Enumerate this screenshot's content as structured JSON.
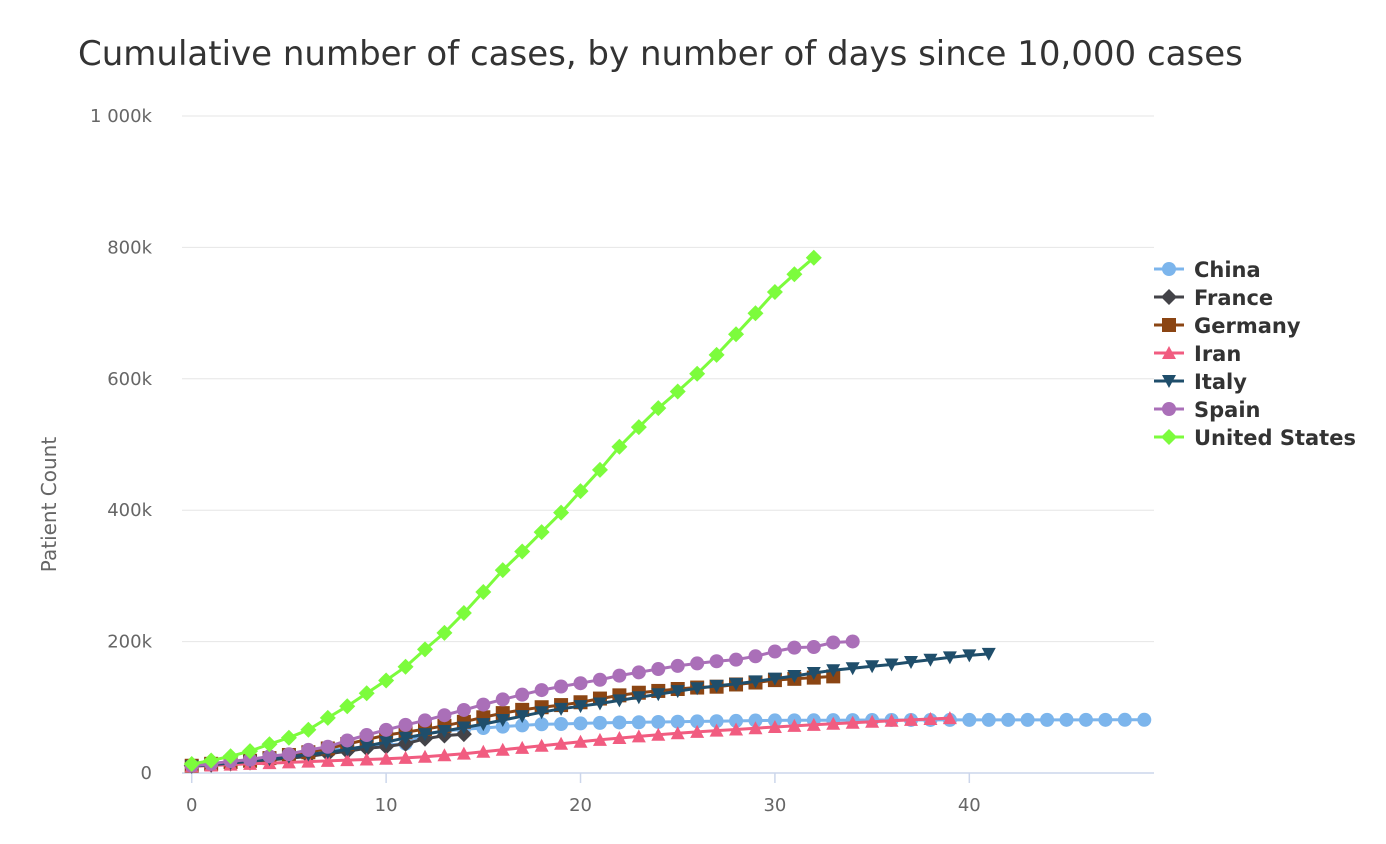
{
  "chart_data": {
    "type": "line",
    "title": "Cumulative number of cases, by number of days since 10,000 cases",
    "xlabel": "",
    "ylabel": "Patient Count",
    "xlim": [
      -0.5,
      49.5
    ],
    "ylim": [
      0,
      1000000
    ],
    "x_ticks": [
      0,
      10,
      20,
      30,
      40
    ],
    "y_ticks": [
      0,
      200000,
      400000,
      600000,
      800000,
      1000000
    ],
    "y_tick_labels": [
      "0",
      "200k",
      "400k",
      "600k",
      "800k",
      "1 000k"
    ],
    "grid": "horizontal",
    "legend": "right",
    "series": [
      {
        "name": "China",
        "color": "#7cb5ec",
        "marker": "circle",
        "values": [
          11791,
          14380,
          17205,
          20438,
          24324,
          28018,
          31161,
          34546,
          37198,
          40171,
          42638,
          44653,
          59804,
          63851,
          66492,
          68500,
          70548,
          72436,
          74185,
          74576,
          75465,
          76288,
          76936,
          77150,
          77658,
          78064,
          78497,
          78824,
          79251,
          79824,
          80026,
          80151,
          80270,
          80409,
          80552,
          80651,
          80695,
          80735,
          80754,
          80778,
          80793,
          80813,
          80824,
          80844,
          80860,
          80881,
          80894,
          80928,
          80967,
          81008
        ]
      },
      {
        "name": "France",
        "color": "#434348",
        "marker": "diamond",
        "values": [
          10995,
          12612,
          14459,
          16018,
          19856,
          22304,
          25233,
          29155,
          32964,
          37575,
          40174,
          44550,
          52128,
          56989,
          59105
        ]
      },
      {
        "name": "Germany",
        "color": "#8b4513",
        "marker": "square",
        "values": [
          10999,
          13957,
          16662,
          18610,
          22672,
          27436,
          31554,
          37323,
          43938,
          50871,
          57695,
          62095,
          66885,
          71808,
          77872,
          84794,
          91159,
          96092,
          100123,
          103374,
          107663,
          113296,
          118181,
          122171,
          124908,
          127854,
          130072,
          131359,
          134753,
          137698,
          141397,
          143342,
          145184,
          147065
        ]
      },
      {
        "name": "Iran",
        "color": "#f15c80",
        "marker": "triangle",
        "values": [
          10075,
          11364,
          12729,
          13938,
          14991,
          16169,
          17361,
          18407,
          19644,
          20610,
          21638,
          23049,
          24811,
          27017,
          29406,
          32332,
          35408,
          38309,
          41495,
          44605,
          47593,
          50468,
          53183,
          55743,
          58226,
          60500,
          62589,
          64586,
          66220,
          68192,
          70029,
          71686,
          73303,
          74877,
          76389,
          77995,
          79494,
          80868,
          82211,
          83505
        ]
      },
      {
        "name": "Italy",
        "color": "#1f4e6b",
        "marker": "triangle-down",
        "values": [
          10149,
          12462,
          15113,
          17660,
          21157,
          24747,
          27980,
          31506,
          35713,
          41035,
          47021,
          53578,
          59138,
          63927,
          69176,
          74386,
          80589,
          86498,
          92472,
          97689,
          101739,
          105792,
          110574,
          115242,
          119827,
          124632,
          128948,
          132547,
          135586,
          139422,
          143626,
          147577,
          152271,
          156363,
          159516,
          162488,
          165155,
          168941,
          172434,
          175925,
          178972,
          181228
        ]
      },
      {
        "name": "Spain",
        "color": "#aa6fb8",
        "marker": "circle",
        "values": [
          11178,
          13910,
          17963,
          20410,
          25374,
          28603,
          35136,
          39885,
          49515,
          57786,
          65719,
          73235,
          80110,
          87956,
          95923,
          104118,
          112065,
          119199,
          126168,
          131646,
          136675,
          141942,
          148220,
          153222,
          158273,
          163027,
          166831,
          170099,
          172541,
          177644,
          184948,
          190839,
          191726,
          198674,
          200210
        ]
      },
      {
        "name": "United States",
        "color": "#7cfc3c",
        "marker": "diamond",
        "values": [
          13677,
          19100,
          25489,
          33276,
          43847,
          53740,
          65778,
          83836,
          101657,
          121478,
          140886,
          161807,
          188172,
          213372,
          243453,
          275586,
          308850,
          337072,
          366667,
          396223,
          429052,
          461437,
          496535,
          526396,
          555313,
          580619,
          607670,
          636350,
          667801,
          699706,
          732197,
          759086,
          784326
        ]
      }
    ]
  }
}
